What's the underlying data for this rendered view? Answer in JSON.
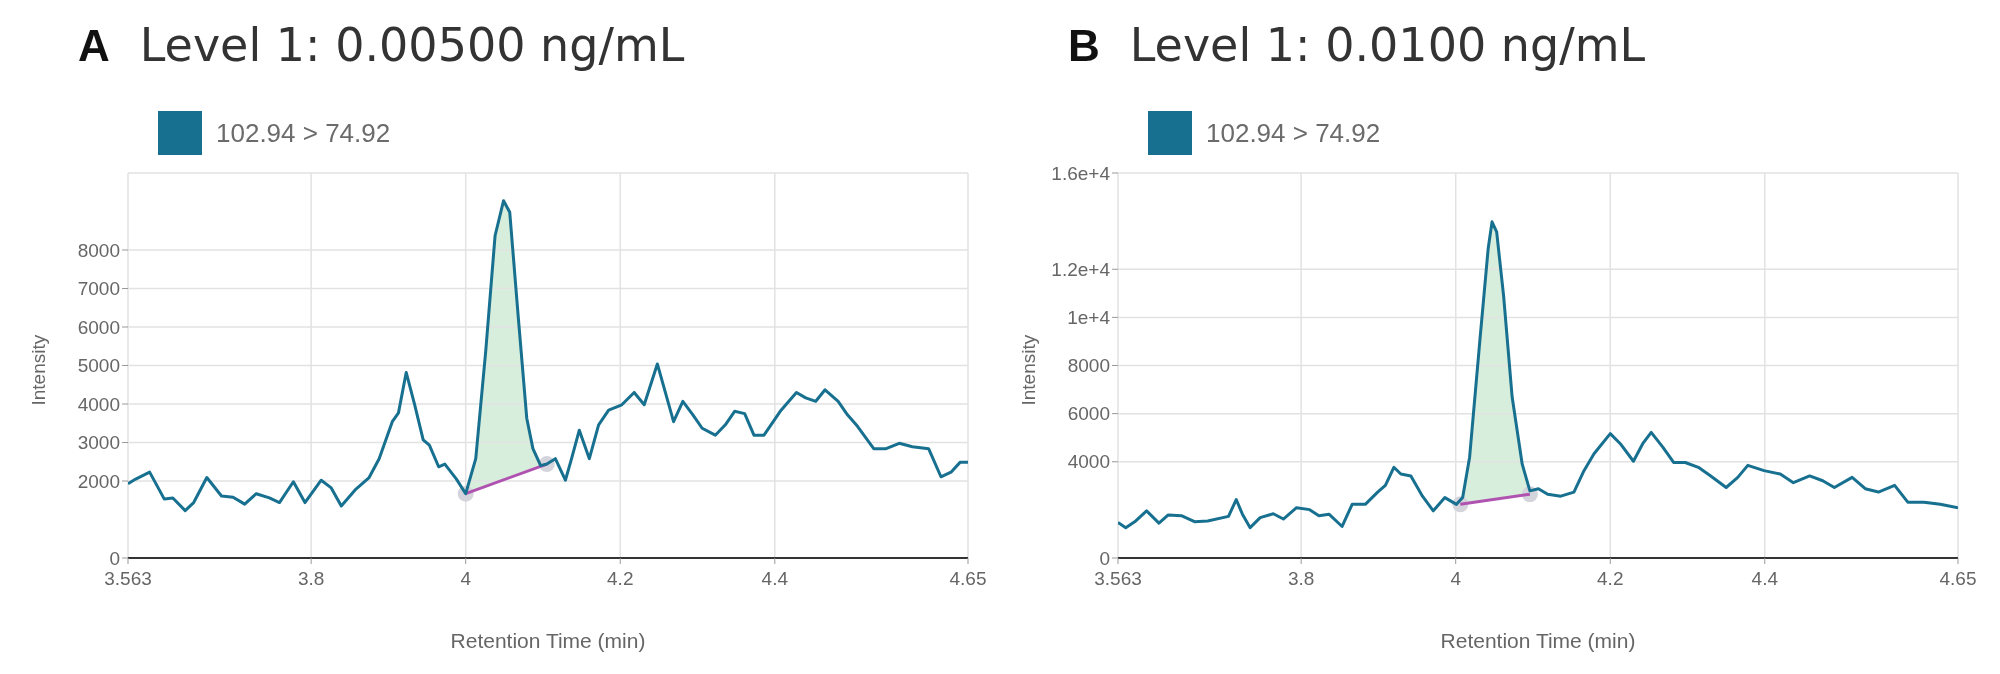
{
  "chart_data": [
    {
      "type": "line",
      "title": "Level 1: 0.00500 ng/mL",
      "annotations": [
        "A"
      ],
      "xlabel": "Retention Time (min)",
      "ylabel": "Intensity",
      "xlim": [
        3.563,
        4.65
      ],
      "xticks": [
        3.563,
        3.8,
        4,
        4.2,
        4.4,
        4.65
      ],
      "ylim": [
        0,
        10000
      ],
      "yticks": [
        0,
        2000,
        3000,
        4000,
        5000,
        6000,
        7000,
        8000
      ],
      "grid": true,
      "legend": "top left",
      "series": [
        {
          "type": "scatter",
          "marker": "circle",
          "color": "#d4d4dc",
          "x": [
            4.0,
            4.105
          ],
          "values": [
            1670,
            2440
          ]
        },
        {
          "name": "102.94 > 74.92",
          "color": "#17708f",
          "x": [
            3.563,
            3.573,
            3.591,
            3.61,
            3.621,
            3.637,
            3.648,
            3.665,
            3.684,
            3.699,
            3.714,
            3.729,
            3.746,
            3.759,
            3.777,
            3.792,
            3.813,
            3.826,
            3.839,
            3.858,
            3.875,
            3.888,
            3.905,
            3.913,
            3.923,
            3.934,
            3.945,
            3.953,
            3.965,
            3.973,
            3.988,
            4.0,
            4.013,
            4.026,
            4.038,
            4.049,
            4.057,
            4.068,
            4.079,
            4.087,
            4.097,
            4.105,
            4.116,
            4.129,
            4.137,
            4.147,
            4.16,
            4.172,
            4.185,
            4.202,
            4.218,
            4.231,
            4.248,
            4.258,
            4.269,
            4.281,
            4.294,
            4.306,
            4.323,
            4.336,
            4.348,
            4.361,
            4.373,
            4.386,
            4.407,
            4.428,
            4.44,
            4.453,
            4.465,
            4.482,
            4.494,
            4.507,
            4.528,
            4.544,
            4.561,
            4.578,
            4.599,
            4.615,
            4.628,
            4.64,
            4.65
          ],
          "values": [
            1930,
            2050,
            2230,
            1530,
            1560,
            1230,
            1440,
            2090,
            1610,
            1580,
            1400,
            1670,
            1560,
            1440,
            1980,
            1440,
            2020,
            1820,
            1350,
            1790,
            2090,
            2580,
            3540,
            3770,
            4820,
            3980,
            3070,
            2930,
            2370,
            2440,
            2050,
            1670,
            2580,
            5390,
            8370,
            9280,
            8980,
            6260,
            3630,
            2840,
            2400,
            2440,
            2580,
            2020,
            2580,
            3320,
            2580,
            3460,
            3840,
            3980,
            4300,
            3980,
            5040,
            4330,
            3540,
            4070,
            3720,
            3370,
            3190,
            3460,
            3810,
            3750,
            3190,
            3190,
            3810,
            4300,
            4160,
            4070,
            4370,
            4070,
            3720,
            3420,
            2840,
            2840,
            2980,
            2890,
            2840,
            2110,
            2230,
            2490,
            2490
          ]
        },
        {
          "type": "line",
          "color": "#b052b0",
          "x": [
            4.0,
            4.105
          ],
          "values": [
            1670,
            2440
          ]
        }
      ]
    },
    {
      "type": "line",
      "title": "Level 1: 0.0100 ng/mL",
      "annotations": [
        "B"
      ],
      "xlabel": "Retention Time (min)",
      "ylabel": "Intensity",
      "xlim": [
        3.563,
        4.65
      ],
      "xticks": [
        3.563,
        3.8,
        4,
        4.2,
        4.4,
        4.65
      ],
      "ylim": [
        0,
        16000
      ],
      "yticks": [
        0,
        4000,
        6000,
        8000,
        {
          "value": 10000,
          "label": "1e+4"
        },
        {
          "value": 12000,
          "label": "1.2e+4"
        },
        {
          "value": 16000,
          "label": "1.6e+4"
        }
      ],
      "grid": true,
      "legend": "top left",
      "series": [
        {
          "type": "scatter",
          "marker": "circle",
          "color": "#d4d4dc",
          "x": [
            4.006,
            4.096
          ],
          "values": [
            2230,
            2650
          ]
        },
        {
          "name": "102.94 > 74.92",
          "color": "#17708f",
          "x": [
            3.563,
            3.573,
            3.586,
            3.6,
            3.616,
            3.628,
            3.645,
            3.662,
            3.679,
            3.706,
            3.716,
            3.724,
            3.734,
            3.747,
            3.764,
            3.777,
            3.794,
            3.811,
            3.823,
            3.836,
            3.853,
            3.866,
            3.883,
            3.899,
            3.909,
            3.92,
            3.929,
            3.942,
            3.957,
            3.971,
            3.986,
            4.001,
            4.009,
            4.018,
            4.031,
            4.042,
            4.047,
            4.053,
            4.062,
            4.073,
            4.086,
            4.096,
            4.107,
            4.119,
            4.136,
            4.153,
            4.166,
            4.179,
            4.2,
            4.213,
            4.23,
            4.242,
            4.253,
            4.268,
            4.282,
            4.297,
            4.314,
            4.33,
            4.35,
            4.365,
            4.378,
            4.399,
            4.42,
            4.437,
            4.458,
            4.475,
            4.49,
            4.513,
            4.53,
            4.547,
            4.568,
            4.585,
            4.606,
            4.627,
            4.65
          ],
          "values": [
            1480,
            1260,
            1540,
            1960,
            1450,
            1790,
            1760,
            1510,
            1540,
            1730,
            2430,
            1820,
            1260,
            1680,
            1840,
            1620,
            2090,
            2010,
            1760,
            1820,
            1310,
            2230,
            2230,
            2740,
            3020,
            3770,
            3490,
            3410,
            2570,
            1960,
            2510,
            2230,
            2510,
            4190,
            8940,
            12850,
            13970,
            13550,
            10890,
            6700,
            3910,
            2790,
            2880,
            2650,
            2570,
            2740,
            3630,
            4330,
            5170,
            4750,
            4020,
            4750,
            5220,
            4610,
            3970,
            3970,
            3770,
            3410,
            2930,
            3350,
            3850,
            3630,
            3490,
            3130,
            3410,
            3210,
            2930,
            3350,
            2880,
            2740,
            3020,
            2320,
            2320,
            2230,
            2090
          ]
        },
        {
          "type": "line",
          "color": "#b052b0",
          "x": [
            4.006,
            4.096
          ],
          "values": [
            2230,
            2650
          ]
        }
      ]
    }
  ]
}
